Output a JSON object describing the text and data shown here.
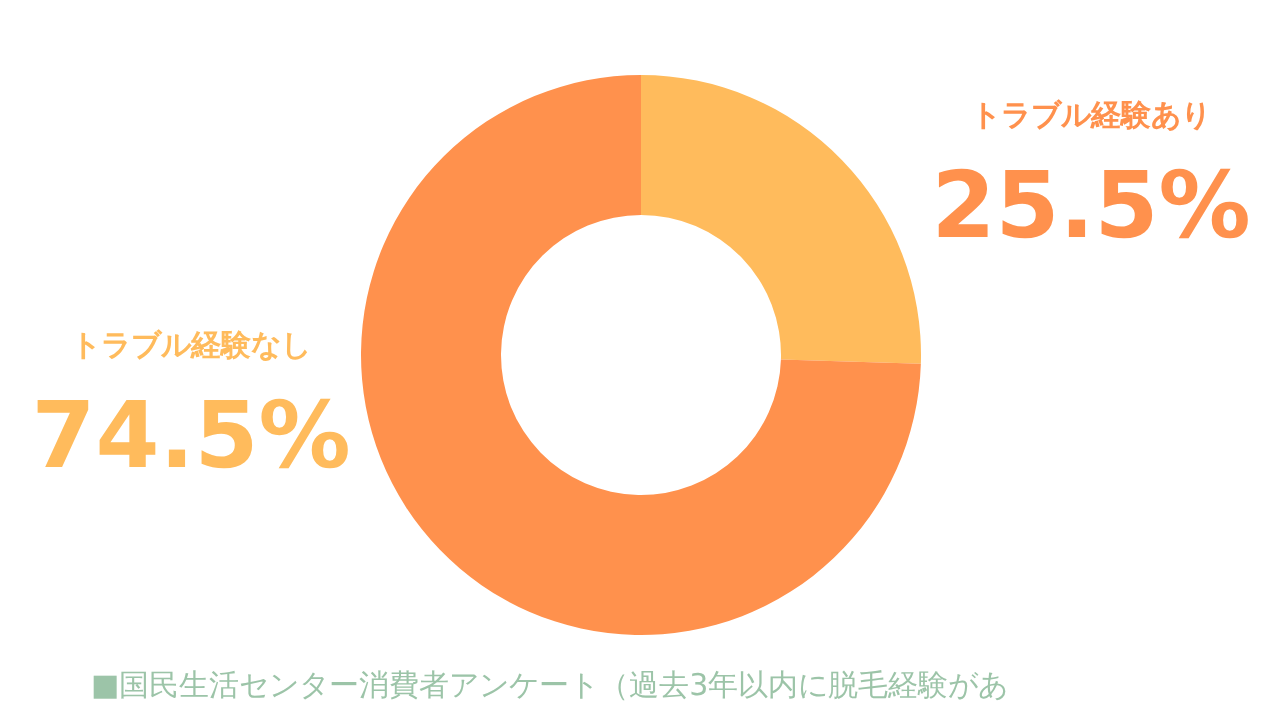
{
  "chart_data": {
    "type": "donut",
    "categories": [
      "トラブル経験あり",
      "トラブル経験なし"
    ],
    "values": [
      25.5,
      74.5
    ],
    "colors": [
      "#ffbb5c",
      "#ff914d"
    ],
    "value_labels": [
      "25.5%",
      "74.5%"
    ],
    "annotations": [
      "■国民生活センター消費者アンケート（過去3年以内に脱毛経験があ"
    ]
  }
}
